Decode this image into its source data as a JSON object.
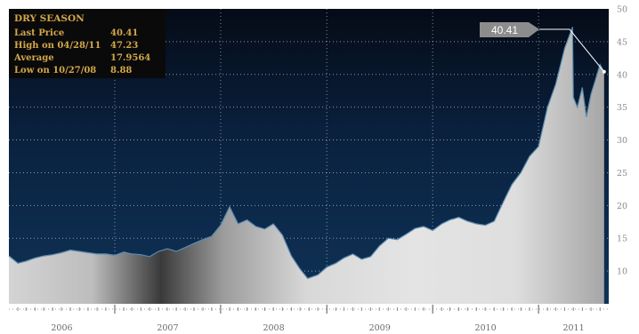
{
  "chart_data": {
    "type": "area",
    "title": "DRY SEASON",
    "stats": [
      {
        "label": "Last Price",
        "value": "40.41"
      },
      {
        "label": "High on 04/28/11",
        "value": "47.23"
      },
      {
        "label": "Average",
        "value": "17.9564"
      },
      {
        "label": "Low on 10/27/08",
        "value": "8.88"
      }
    ],
    "callout_value": "40.41",
    "x_tick_labels": [
      "2006",
      "2007",
      "2008",
      "2009",
      "2010",
      "2011"
    ],
    "y_tick_labels": [
      "10",
      "15",
      "20",
      "25",
      "30",
      "35",
      "40",
      "45",
      "50"
    ],
    "ylim": [
      5,
      50
    ],
    "xlim": [
      "2006-01-01",
      "2011-08-31"
    ],
    "grid": true,
    "series": [
      {
        "x": [
          "2006-01-01",
          "2006-02-01",
          "2006-03-01",
          "2006-04-01",
          "2006-05-01",
          "2006-06-01",
          "2006-07-01",
          "2006-08-01",
          "2006-09-01",
          "2006-10-01",
          "2006-11-01",
          "2006-12-01",
          "2007-01-01",
          "2007-02-01",
          "2007-03-01",
          "2007-04-01",
          "2007-05-01",
          "2007-06-01",
          "2007-07-01",
          "2007-08-01",
          "2007-09-01",
          "2007-10-01",
          "2007-11-01",
          "2007-12-01",
          "2008-01-01",
          "2008-02-01",
          "2008-03-01",
          "2008-04-01",
          "2008-05-01",
          "2008-06-01",
          "2008-07-01",
          "2008-08-01",
          "2008-09-01",
          "2008-10-01",
          "2008-10-27",
          "2008-12-01",
          "2009-01-01",
          "2009-02-01",
          "2009-03-01",
          "2009-04-01",
          "2009-05-01",
          "2009-06-01",
          "2009-07-01",
          "2009-08-01",
          "2009-09-01",
          "2009-10-01",
          "2009-11-01",
          "2009-12-01",
          "2010-01-01",
          "2010-02-01",
          "2010-03-01",
          "2010-04-01",
          "2010-05-01",
          "2010-06-01",
          "2010-07-01",
          "2010-08-01",
          "2010-09-01",
          "2010-10-01",
          "2010-11-01",
          "2010-12-01",
          "2011-01-01",
          "2011-02-01",
          "2011-03-01",
          "2011-04-01",
          "2011-04-28",
          "2011-05-01",
          "2011-05-15",
          "2011-06-01",
          "2011-06-15",
          "2011-07-01",
          "2011-07-15",
          "2011-08-01",
          "2011-08-15"
        ],
        "values": [
          12.3,
          11.2,
          11.5,
          12.0,
          12.3,
          12.5,
          12.8,
          13.2,
          13.0,
          12.8,
          12.6,
          12.6,
          12.4,
          12.9,
          12.6,
          12.5,
          12.2,
          13.0,
          13.4,
          13.0,
          13.6,
          14.2,
          14.8,
          15.3,
          17.0,
          19.8,
          17.2,
          17.8,
          16.8,
          16.4,
          17.2,
          15.5,
          12.3,
          10.3,
          8.88,
          9.4,
          10.6,
          11.2,
          12.0,
          12.6,
          11.8,
          12.2,
          13.8,
          15.0,
          14.8,
          15.6,
          16.5,
          16.8,
          16.2,
          17.2,
          17.8,
          18.2,
          17.6,
          17.2,
          17.0,
          17.6,
          20.5,
          23.2,
          25.0,
          27.5,
          29.0,
          35.0,
          38.5,
          44.0,
          47.23,
          36.5,
          35.0,
          38.0,
          33.5,
          37.0,
          39.0,
          41.5,
          40.41
        ]
      }
    ]
  }
}
